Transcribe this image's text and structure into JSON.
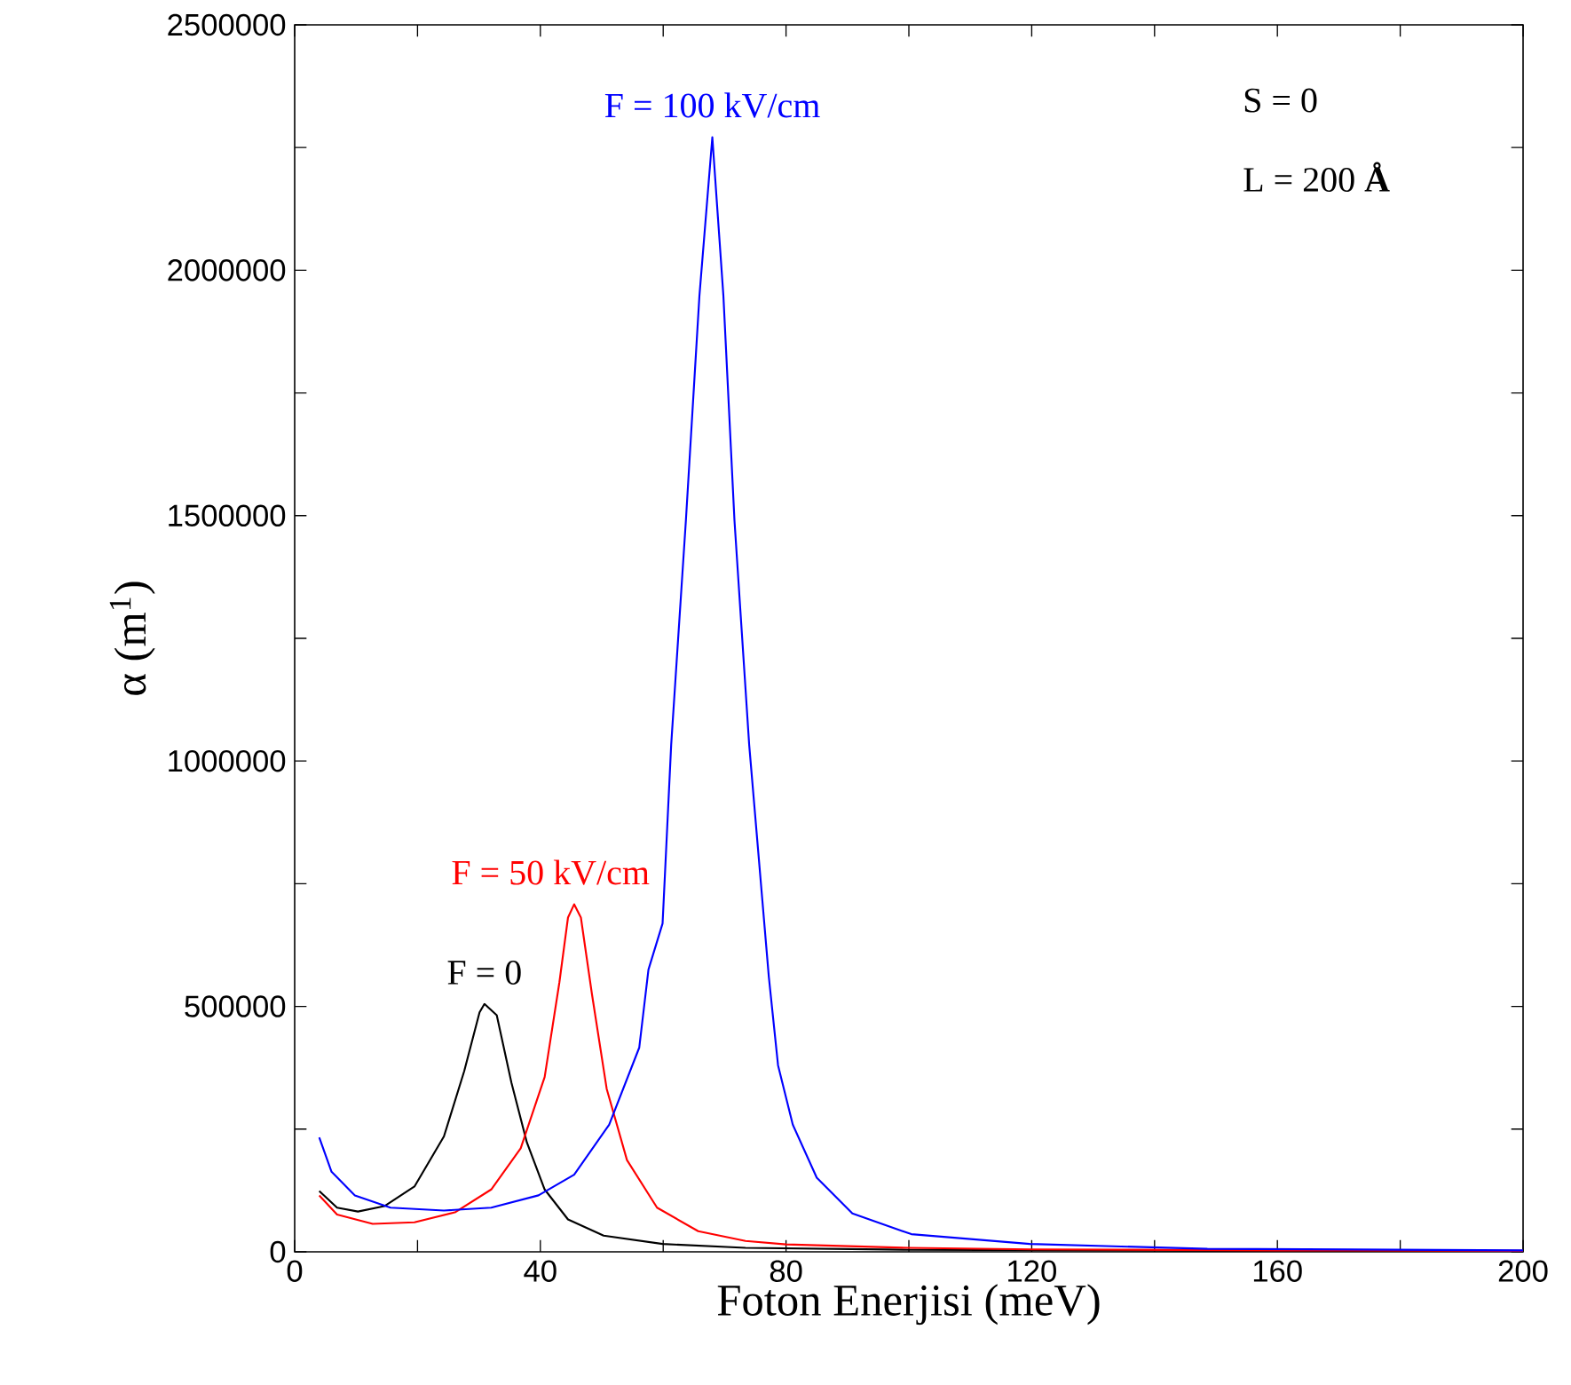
{
  "chart_data": {
    "type": "line",
    "xlabel": "Foton Enerjisi (meV)",
    "ylabel": "α (m$^{1}$)",
    "xlim": [
      0,
      200
    ],
    "ylim": [
      0,
      2500000
    ],
    "xticks": [
      0,
      {
        "value": 20,
        "label": null
      },
      40,
      {
        "value": 60,
        "label": null
      },
      80,
      {
        "value": 100,
        "label": null
      },
      120,
      {
        "value": 140,
        "label": null
      },
      160,
      {
        "value": 180,
        "label": null
      },
      200
    ],
    "yticks": [
      0,
      {
        "value": 250000,
        "label": null
      },
      500000,
      {
        "value": 750000,
        "label": null
      },
      1000000,
      {
        "value": 1250000,
        "label": null
      },
      1500000,
      {
        "value": 1750000,
        "label": null
      },
      2000000,
      {
        "value": 2250000,
        "label": null
      },
      2500000
    ],
    "annotations": [
      "S = 0",
      "L = 200 **Å**"
    ],
    "grid": false,
    "legend": false,
    "marker": "none",
    "line_style": "solid",
    "series": [
      {
        "name": "F = 0",
        "color": "#000000",
        "x": [
          4,
          6.9,
          10.3,
          14.6,
          19.5,
          24.3,
          27.6,
          30.1,
          30.9,
          32.9,
          35.3,
          37.8,
          40.7,
          44.5,
          50.3,
          59.9,
          73.4,
          100,
          150,
          200
        ],
        "values": [
          124000,
          90000,
          82000,
          93000,
          133000,
          235000,
          368000,
          488000,
          505000,
          482000,
          344000,
          223000,
          127000,
          66000,
          33000,
          16000,
          8000,
          4000,
          2000,
          1000
        ]
      },
      {
        "name": "F = 50 kV/cm",
        "color": "#ff0000",
        "x": [
          4,
          6.9,
          12.7,
          19.5,
          26.2,
          32.0,
          36.8,
          40.7,
          43.1,
          44.5,
          45.5,
          46.6,
          48.4,
          50.8,
          54.1,
          59.0,
          65.7,
          73.4,
          80,
          100,
          120,
          160,
          200
        ],
        "values": [
          115000,
          76000,
          57000,
          60000,
          81000,
          127000,
          211000,
          356000,
          549000,
          681000,
          708000,
          681000,
          525000,
          332000,
          187000,
          90000,
          42000,
          22000,
          15000,
          8000,
          5000,
          3000,
          2000
        ]
      },
      {
        "name": "F = 100 kV/cm",
        "color": "#0000ff",
        "x": [
          4,
          6.0,
          9.8,
          15.6,
          24.3,
          32.0,
          39.7,
          45.5,
          51.2,
          56.1,
          57.6,
          59.9,
          61.3,
          63.7,
          65.9,
          68.0,
          69.8,
          71.6,
          74.0,
          77.2,
          78.7,
          81.1,
          85.0,
          90.8,
          100.4,
          119.7,
          148.6,
          200
        ],
        "values": [
          233000,
          163000,
          115000,
          90000,
          84000,
          90000,
          115000,
          157000,
          259000,
          416000,
          575000,
          669000,
          1033000,
          1491000,
          1948000,
          2271000,
          1948000,
          1491000,
          1033000,
          560000,
          380000,
          259000,
          151000,
          78000,
          36000,
          16000,
          6000,
          3000
        ]
      }
    ]
  }
}
